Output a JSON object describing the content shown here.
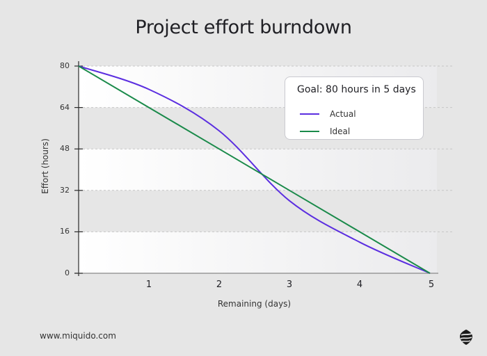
{
  "title": "Project effort burndown",
  "footer": {
    "url": "www.miquido.com",
    "logo_icon": "miquido-logo-icon"
  },
  "legend": {
    "title": "Goal: 80 hours in 5 days",
    "items": [
      {
        "label": "Actual",
        "color": "#5b2ee0"
      },
      {
        "label": "Ideal",
        "color": "#1a8a4a"
      }
    ]
  },
  "axes": {
    "xlabel": "Remaining (days)",
    "ylabel": "Effort (hours)",
    "xticks": [
      "1",
      "2",
      "3",
      "4",
      "5"
    ],
    "yticks": [
      "0",
      "16",
      "32",
      "48",
      "64",
      "80"
    ]
  },
  "chart_data": {
    "type": "line",
    "title": "Project effort burndown",
    "xlabel": "Remaining (days)",
    "ylabel": "Effort (hours)",
    "x": [
      0,
      1,
      2,
      3,
      4,
      5
    ],
    "xlim": [
      0,
      5
    ],
    "ylim": [
      0,
      80
    ],
    "yticks": [
      0,
      16,
      32,
      48,
      64,
      80
    ],
    "xticks": [
      1,
      2,
      3,
      4,
      5
    ],
    "grid": "horizontal dashed, alternating bands",
    "legend_position": "upper right",
    "legend_title": "Goal: 80 hours in 5 days",
    "series": [
      {
        "name": "Actual",
        "color": "#5b2ee0",
        "values": [
          80,
          71,
          55,
          28,
          12,
          0
        ]
      },
      {
        "name": "Ideal",
        "color": "#1a8a4a",
        "values": [
          80,
          64,
          48,
          32,
          16,
          0
        ]
      }
    ]
  }
}
